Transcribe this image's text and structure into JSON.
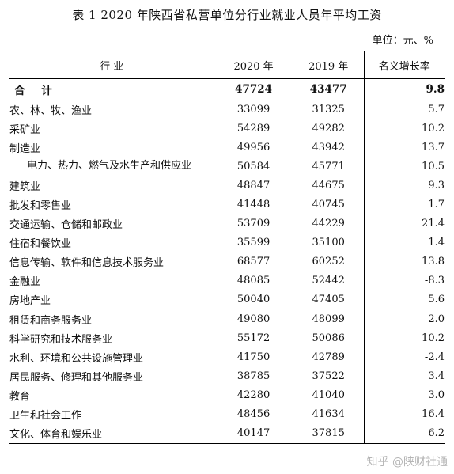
{
  "title": "表 1   2020 年陕西省私营单位分行业就业人员年平均工资",
  "unit": "单位：元、%",
  "headers": {
    "industry": "行    业",
    "y2020": "2020 年",
    "y2019": "2019 年",
    "rate": "名义增长率"
  },
  "rows": [
    {
      "name": "合  计",
      "y2020": "47724",
      "y2019": "43477",
      "rate": "9.8",
      "total": true
    },
    {
      "name": "农、林、牧、渔业",
      "y2020": "33099",
      "y2019": "31325",
      "rate": "5.7"
    },
    {
      "name": "采矿业",
      "y2020": "54289",
      "y2019": "49282",
      "rate": "10.2"
    },
    {
      "name": "制造业",
      "y2020": "49956",
      "y2019": "43942",
      "rate": "13.7"
    },
    {
      "name": "电力、热力、燃气及水生产和供应业",
      "y2020": "50584",
      "y2019": "45771",
      "rate": "10.5",
      "wrap": true
    },
    {
      "name": "建筑业",
      "y2020": "48847",
      "y2019": "44675",
      "rate": "9.3"
    },
    {
      "name": "批发和零售业",
      "y2020": "41448",
      "y2019": "40745",
      "rate": "1.7"
    },
    {
      "name": "交通运输、仓储和邮政业",
      "y2020": "53709",
      "y2019": "44229",
      "rate": "21.4"
    },
    {
      "name": "住宿和餐饮业",
      "y2020": "35599",
      "y2019": "35100",
      "rate": "1.4"
    },
    {
      "name": "信息传输、软件和信息技术服务业",
      "y2020": "68577",
      "y2019": "60252",
      "rate": "13.8"
    },
    {
      "name": "金融业",
      "y2020": "48085",
      "y2019": "52442",
      "rate": "-8.3"
    },
    {
      "name": "房地产业",
      "y2020": "50040",
      "y2019": "47405",
      "rate": "5.6"
    },
    {
      "name": "租赁和商务服务业",
      "y2020": "49080",
      "y2019": "48099",
      "rate": "2.0"
    },
    {
      "name": "科学研究和技术服务业",
      "y2020": "55172",
      "y2019": "50086",
      "rate": "10.2"
    },
    {
      "name": "水利、环境和公共设施管理业",
      "y2020": "41750",
      "y2019": "42789",
      "rate": "-2.4"
    },
    {
      "name": "居民服务、修理和其他服务业",
      "y2020": "38785",
      "y2019": "37522",
      "rate": "3.4"
    },
    {
      "name": "教育",
      "y2020": "42280",
      "y2019": "41040",
      "rate": "3.0"
    },
    {
      "name": "卫生和社会工作",
      "y2020": "48456",
      "y2019": "41634",
      "rate": "16.4"
    },
    {
      "name": "文化、体育和娱乐业",
      "y2020": "40147",
      "y2019": "37815",
      "rate": "6.2"
    }
  ],
  "watermark": "知乎 @陕财社通"
}
